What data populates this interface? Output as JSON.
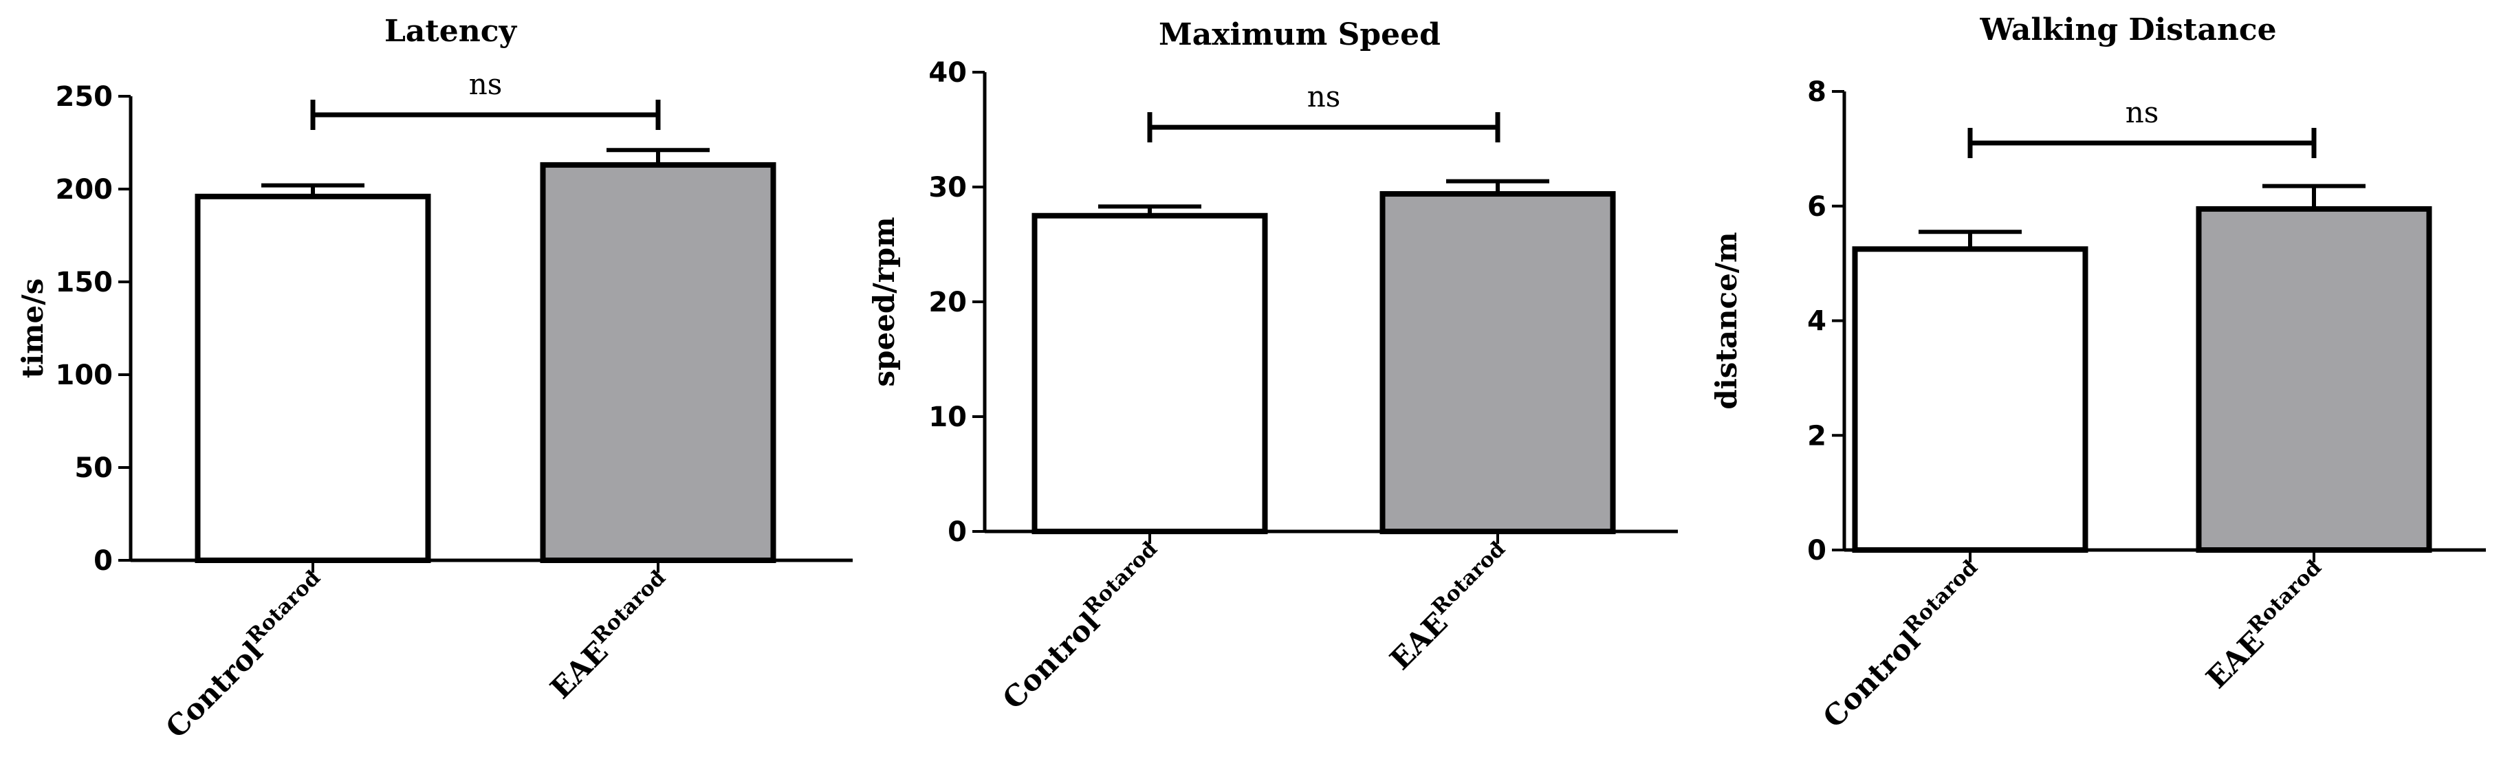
{
  "chart_data": [
    {
      "type": "bar",
      "title": "Latency",
      "xlabel": "",
      "ylabel": "time/s",
      "ylim": [
        0,
        250
      ],
      "yticks": [
        "0",
        "50",
        "100",
        "150",
        "200",
        "250"
      ],
      "categories": [
        {
          "label": "Control",
          "superscript": "Rotarod"
        },
        {
          "label": "EAE",
          "superscript": "Rotarod"
        }
      ],
      "values": [
        196,
        213
      ],
      "errors": [
        6,
        8
      ],
      "fill_colors": [
        "#ffffff",
        "#a3a3a6"
      ],
      "significance": {
        "label": "ns",
        "between": [
          0,
          1
        ],
        "y": 240
      },
      "grid": false,
      "legend": "none"
    },
    {
      "type": "bar",
      "title": "Maximum Speed",
      "xlabel": "",
      "ylabel": "speed/rpm",
      "ylim": [
        0,
        40
      ],
      "yticks": [
        "0",
        "10",
        "20",
        "30",
        "40"
      ],
      "categories": [
        {
          "label": "Control",
          "superscript": "Rotarod"
        },
        {
          "label": "EAE",
          "superscript": "Rotarod"
        }
      ],
      "values": [
        27.5,
        29.4
      ],
      "errors": [
        0.8,
        1.1
      ],
      "fill_colors": [
        "#ffffff",
        "#a3a3a6"
      ],
      "significance": {
        "label": "ns",
        "between": [
          0,
          1
        ],
        "y": 35.2
      },
      "grid": false,
      "legend": "none"
    },
    {
      "type": "bar",
      "title": "Walking Distance",
      "xlabel": "",
      "ylabel": "distance/m",
      "ylim": [
        0,
        8
      ],
      "yticks": [
        "0",
        "2",
        "4",
        "6",
        "8"
      ],
      "categories": [
        {
          "label": "Control",
          "superscript": "Rotarod"
        },
        {
          "label": "EAE",
          "superscript": "Rotarod"
        }
      ],
      "values": [
        5.25,
        5.95
      ],
      "errors": [
        0.3,
        0.4
      ],
      "fill_colors": [
        "#ffffff",
        "#a3a3a6"
      ],
      "significance": {
        "label": "ns",
        "between": [
          0,
          1
        ],
        "y": 7.1
      },
      "grid": false,
      "legend": "none"
    }
  ]
}
